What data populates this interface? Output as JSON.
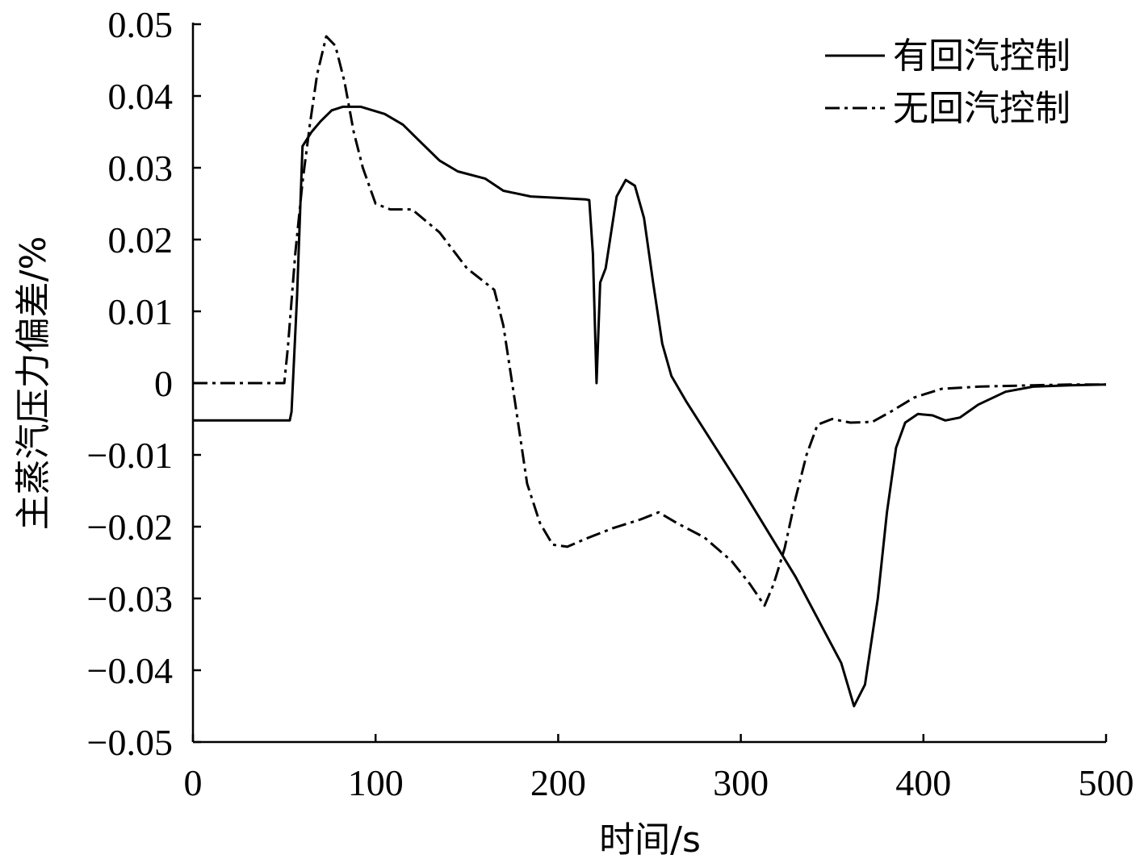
{
  "chart_data": {
    "type": "line",
    "title": "",
    "xlabel": "时间/s",
    "ylabel": "主蒸汽压力偏差/%",
    "xlim": [
      0,
      500
    ],
    "ylim": [
      -0.05,
      0.05
    ],
    "x_ticks": [
      0,
      100,
      200,
      300,
      400,
      500
    ],
    "x_tick_labels": [
      "0",
      "100",
      "200",
      "300",
      "400",
      "500"
    ],
    "y_ticks": [
      0.05,
      0.04,
      0.03,
      0.02,
      0.01,
      0,
      -0.01,
      -0.02,
      -0.03,
      -0.04,
      -0.05
    ],
    "y_tick_labels": [
      "0.05",
      "0.04",
      "0.03",
      "0.02",
      "0.01",
      "0",
      "−0.01",
      "−0.02",
      "−0.03",
      "−0.04",
      "−0.05"
    ],
    "grid": false,
    "legend_position": "top-right",
    "series": [
      {
        "name": "有回汽控制",
        "style": "solid",
        "color": "#000000",
        "points": [
          [
            0,
            -0.0052
          ],
          [
            53,
            -0.0052
          ],
          [
            54,
            -0.004
          ],
          [
            57,
            0.012
          ],
          [
            60,
            0.033
          ],
          [
            65,
            0.035
          ],
          [
            70,
            0.0365
          ],
          [
            76,
            0.038
          ],
          [
            82,
            0.0385
          ],
          [
            92,
            0.0385
          ],
          [
            105,
            0.0375
          ],
          [
            115,
            0.036
          ],
          [
            125,
            0.0335
          ],
          [
            135,
            0.031
          ],
          [
            145,
            0.0295
          ],
          [
            160,
            0.0285
          ],
          [
            170,
            0.0268
          ],
          [
            185,
            0.026
          ],
          [
            200,
            0.0258
          ],
          [
            215,
            0.0256
          ],
          [
            217,
            0.0255
          ],
          [
            219,
            0.018
          ],
          [
            221,
            0.0
          ],
          [
            223,
            0.014
          ],
          [
            226,
            0.016
          ],
          [
            232,
            0.026
          ],
          [
            237,
            0.0283
          ],
          [
            242,
            0.0275
          ],
          [
            247,
            0.023
          ],
          [
            252,
            0.014
          ],
          [
            257,
            0.0055
          ],
          [
            262,
            0.001
          ],
          [
            270,
            -0.0025
          ],
          [
            300,
            -0.0145
          ],
          [
            330,
            -0.027
          ],
          [
            355,
            -0.039
          ],
          [
            362,
            -0.045
          ],
          [
            368,
            -0.042
          ],
          [
            375,
            -0.03
          ],
          [
            380,
            -0.018
          ],
          [
            385,
            -0.009
          ],
          [
            390,
            -0.0055
          ],
          [
            397,
            -0.0043
          ],
          [
            405,
            -0.0045
          ],
          [
            412,
            -0.0052
          ],
          [
            420,
            -0.0048
          ],
          [
            430,
            -0.003
          ],
          [
            445,
            -0.0012
          ],
          [
            460,
            -0.0005
          ],
          [
            480,
            -0.0003
          ],
          [
            500,
            -0.0002
          ]
        ]
      },
      {
        "name": "无回汽控制",
        "style": "dash-dot",
        "color": "#000000",
        "points": [
          [
            0,
            0.0
          ],
          [
            50,
            0.0
          ],
          [
            52,
            0.005
          ],
          [
            56,
            0.018
          ],
          [
            60,
            0.028
          ],
          [
            64,
            0.036
          ],
          [
            68,
            0.043
          ],
          [
            73,
            0.0483
          ],
          [
            78,
            0.047
          ],
          [
            83,
            0.042
          ],
          [
            88,
            0.035
          ],
          [
            93,
            0.03
          ],
          [
            100,
            0.025
          ],
          [
            108,
            0.0242
          ],
          [
            120,
            0.0242
          ],
          [
            135,
            0.021
          ],
          [
            150,
            0.016
          ],
          [
            160,
            0.014
          ],
          [
            165,
            0.013
          ],
          [
            170,
            0.008
          ],
          [
            176,
            -0.002
          ],
          [
            183,
            -0.014
          ],
          [
            190,
            -0.0195
          ],
          [
            197,
            -0.0225
          ],
          [
            205,
            -0.0228
          ],
          [
            215,
            -0.0217
          ],
          [
            230,
            -0.0202
          ],
          [
            245,
            -0.019
          ],
          [
            255,
            -0.018
          ],
          [
            265,
            -0.0195
          ],
          [
            280,
            -0.0215
          ],
          [
            295,
            -0.0248
          ],
          [
            305,
            -0.028
          ],
          [
            313,
            -0.031
          ],
          [
            318,
            -0.028
          ],
          [
            324,
            -0.023
          ],
          [
            330,
            -0.016
          ],
          [
            336,
            -0.01
          ],
          [
            342,
            -0.0058
          ],
          [
            350,
            -0.005
          ],
          [
            360,
            -0.0055
          ],
          [
            372,
            -0.0054
          ],
          [
            382,
            -0.004
          ],
          [
            395,
            -0.002
          ],
          [
            410,
            -0.0008
          ],
          [
            430,
            -0.0005
          ],
          [
            460,
            -0.0003
          ],
          [
            480,
            -0.0002
          ],
          [
            500,
            -0.0002
          ]
        ]
      }
    ]
  }
}
